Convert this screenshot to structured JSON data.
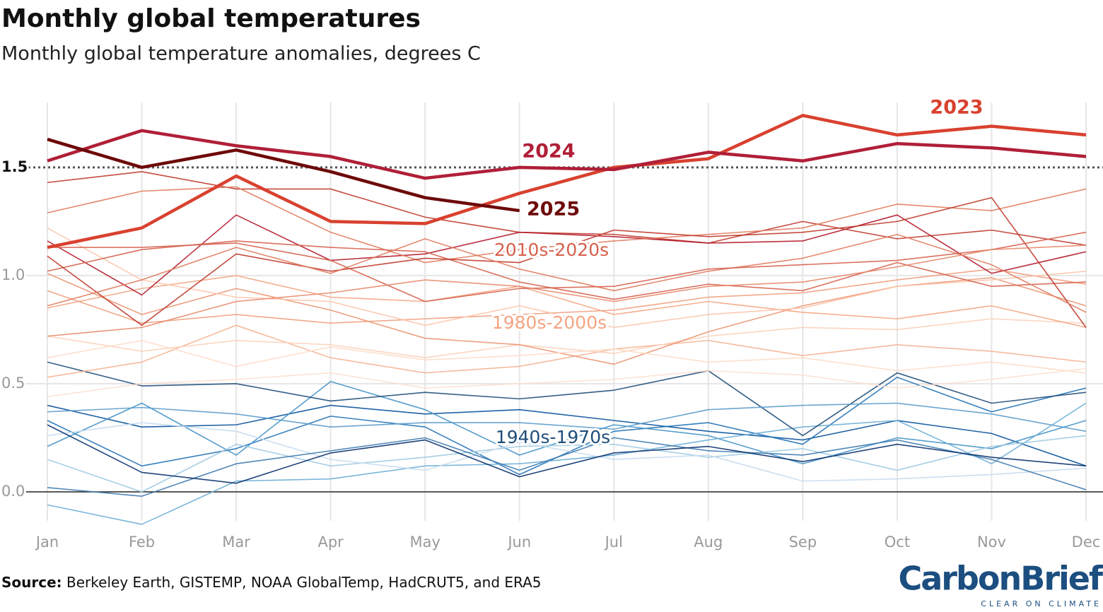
{
  "chart_data": {
    "type": "line",
    "title": "Monthly global temperatures",
    "subtitle": "Monthly global temperature anomalies, degrees C",
    "categories": [
      "Jan",
      "Feb",
      "Mar",
      "Apr",
      "May",
      "Jun",
      "Jul",
      "Aug",
      "Sep",
      "Oct",
      "Nov",
      "Dec"
    ],
    "ylim": [
      -0.16,
      1.8
    ],
    "yticks": [
      {
        "value": 0,
        "label": "0.0"
      },
      0.5,
      {
        "value": 1,
        "label": "1.0"
      },
      1.5
    ],
    "grid": true,
    "threshold": 1.5,
    "annotations": [
      {
        "text": "2010s-2020s",
        "color": "#d6604d"
      },
      {
        "text": "1980s-2000s",
        "color": "#f4a582"
      },
      {
        "text": "1940s-1970s",
        "color": "#1f4e79"
      }
    ],
    "series": [
      {
        "color": "#08519c",
        "values": [
          0.4,
          0.3,
          0.31,
          0.4,
          0.36,
          0.38,
          0.33,
          0.28,
          0.24,
          0.33,
          0.27,
          0.12
        ]
      },
      {
        "color": "#2171b5",
        "values": [
          0.33,
          0.12,
          0.2,
          0.35,
          0.3,
          0.08,
          0.28,
          0.32,
          0.22,
          0.53,
          0.37,
          0.48
        ]
      },
      {
        "color": "#4292c6",
        "values": [
          0.21,
          0.41,
          0.17,
          0.51,
          0.38,
          0.17,
          0.31,
          0.26,
          0.13,
          0.25,
          0.2,
          0.33
        ]
      },
      {
        "color": "#6baed6",
        "values": [
          -0.06,
          -0.15,
          0.05,
          0.06,
          0.12,
          0.13,
          0.17,
          0.24,
          0.3,
          0.33,
          0.13,
          0.41
        ]
      },
      {
        "color": "#9ecae1",
        "values": [
          0.15,
          0.0,
          0.22,
          0.12,
          0.16,
          0.21,
          0.22,
          0.16,
          0.2,
          0.1,
          0.21,
          0.26
        ]
      },
      {
        "color": "#c6dbef",
        "values": [
          0.26,
          0.32,
          0.28,
          0.15,
          0.1,
          0.23,
          0.15,
          0.17,
          0.05,
          0.06,
          0.08,
          0.11
        ]
      },
      {
        "color": "#1f4e79",
        "values": [
          0.6,
          0.49,
          0.5,
          0.42,
          0.46,
          0.43,
          0.47,
          0.56,
          0.26,
          0.55,
          0.41,
          0.46
        ]
      },
      {
        "color": "#3d7ab0",
        "values": [
          0.02,
          -0.02,
          0.13,
          0.19,
          0.25,
          0.1,
          0.25,
          0.19,
          0.17,
          0.24,
          0.15,
          0.01
        ]
      },
      {
        "color": "#5a9bcb",
        "values": [
          0.37,
          0.39,
          0.36,
          0.3,
          0.32,
          0.32,
          0.29,
          0.38,
          0.4,
          0.41,
          0.36,
          0.28
        ]
      },
      {
        "color": "#08306b",
        "values": [
          0.31,
          0.09,
          0.04,
          0.18,
          0.24,
          0.07,
          0.18,
          0.21,
          0.14,
          0.22,
          0.16,
          0.12
        ]
      },
      {
        "color": "#f6b394",
        "values": [
          0.53,
          0.6,
          0.77,
          0.62,
          0.55,
          0.58,
          0.66,
          0.7,
          0.63,
          0.68,
          0.65,
          0.6
        ]
      },
      {
        "color": "#fbd0b9",
        "values": [
          0.72,
          0.65,
          0.7,
          0.68,
          0.62,
          0.68,
          0.64,
          0.72,
          0.76,
          0.75,
          0.8,
          0.78
        ]
      },
      {
        "color": "#eb9572",
        "values": [
          1.01,
          0.82,
          0.94,
          0.84,
          0.71,
          0.68,
          0.59,
          0.74,
          0.86,
          0.95,
          0.99,
          0.86
        ]
      },
      {
        "color": "#f4a582",
        "values": [
          0.85,
          0.94,
          1.0,
          0.9,
          0.88,
          0.95,
          0.82,
          0.88,
          0.83,
          0.8,
          0.86,
          0.76
        ]
      },
      {
        "color": "#fddbc7",
        "values": [
          0.62,
          0.7,
          0.58,
          0.67,
          0.61,
          0.63,
          0.66,
          0.6,
          0.62,
          0.56,
          0.6,
          0.55
        ]
      },
      {
        "color": "#f09c7c",
        "values": [
          0.93,
          0.78,
          0.82,
          0.78,
          0.8,
          0.82,
          0.84,
          0.9,
          0.92,
          0.98,
          1.03,
          0.96
        ]
      },
      {
        "color": "#fcc5ab",
        "values": [
          1.22,
          0.98,
          0.9,
          0.88,
          0.77,
          0.86,
          0.76,
          0.82,
          0.85,
          0.95,
          0.98,
          1.02
        ]
      },
      {
        "color": "#fde0d0",
        "values": [
          0.44,
          0.5,
          0.52,
          0.55,
          0.48,
          0.5,
          0.52,
          0.56,
          0.54,
          0.48,
          0.52,
          0.57
        ]
      },
      {
        "color": "#c0392b",
        "values": [
          1.43,
          1.48,
          1.4,
          1.4,
          1.27,
          1.2,
          1.19,
          1.15,
          1.25,
          1.17,
          1.21,
          1.14
        ]
      },
      {
        "color": "#b2182b",
        "values": [
          1.16,
          0.91,
          1.28,
          1.07,
          1.1,
          1.2,
          1.18,
          1.15,
          1.16,
          1.28,
          1.01,
          1.11
        ]
      },
      {
        "color": "#e07b5e",
        "values": [
          1.29,
          1.39,
          1.41,
          1.2,
          1.06,
          1.12,
          1.16,
          1.19,
          1.22,
          1.33,
          1.3,
          1.4
        ]
      },
      {
        "color": "#d6604d",
        "values": [
          1.02,
          1.12,
          1.16,
          1.13,
          1.11,
          0.97,
          0.89,
          0.96,
          0.93,
          1.06,
          0.95,
          0.97
        ]
      },
      {
        "color": "#c0392b",
        "values": [
          1.09,
          0.77,
          1.1,
          1.02,
          1.08,
          1.06,
          1.21,
          1.18,
          1.2,
          1.25,
          1.36,
          0.76
        ]
      },
      {
        "color": "#e07b5e",
        "values": [
          0.86,
          0.98,
          1.13,
          1.01,
          1.17,
          1.03,
          0.93,
          1.02,
          1.08,
          1.19,
          1.05,
          0.83
        ]
      },
      {
        "color": "#d6604d",
        "values": [
          1.13,
          1.13,
          1.15,
          1.07,
          0.88,
          0.94,
          0.95,
          1.03,
          1.05,
          1.07,
          1.12,
          1.2
        ]
      },
      {
        "color": "#e8896b",
        "values": [
          0.72,
          0.76,
          0.88,
          0.92,
          0.98,
          0.95,
          0.88,
          0.95,
          0.97,
          1.04,
          1.12,
          1.14
        ]
      },
      {
        "name": "2023",
        "color": "#d9412f",
        "values": [
          1.13,
          1.22,
          1.46,
          1.25,
          1.24,
          1.38,
          1.5,
          1.54,
          1.74,
          1.65,
          1.69,
          1.65
        ]
      },
      {
        "name": "2024",
        "color": "#b01f37",
        "values": [
          1.53,
          1.67,
          1.6,
          1.55,
          1.45,
          1.5,
          1.49,
          1.57,
          1.53,
          1.61,
          1.59,
          1.55
        ]
      },
      {
        "name": "2025",
        "color": "#6e0a0a",
        "values": [
          1.63,
          1.5,
          1.58,
          1.48,
          1.36,
          1.3,
          null,
          null,
          null,
          null,
          null,
          null
        ]
      }
    ]
  },
  "footer": {
    "source_label": "Source:",
    "source_text": " Berkeley Earth, GISTEMP, NOAA GlobalTemp, HadCRUT5, and ERA5",
    "logo": "CarbonBrief",
    "tagline": "CLEAR ON CLIMATE"
  }
}
